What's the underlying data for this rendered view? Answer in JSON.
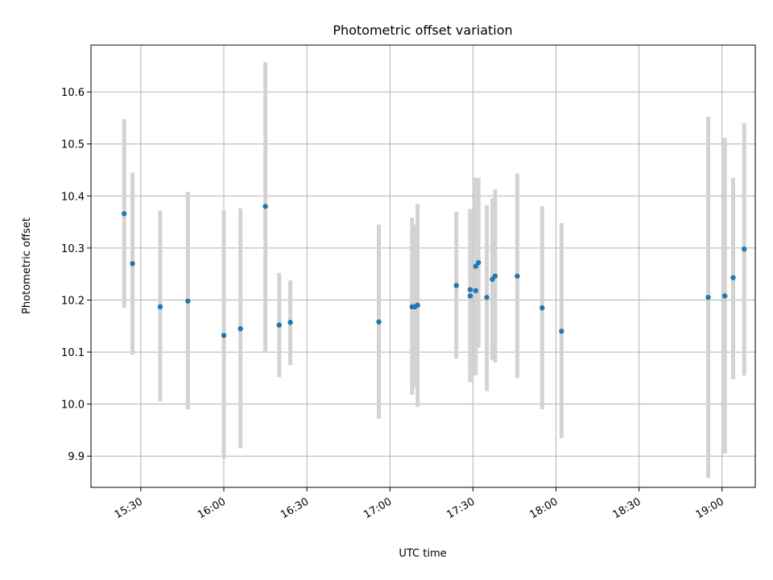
{
  "chart_data": {
    "type": "scatter",
    "title": "Photometric offset variation",
    "xlabel": "UTC time",
    "ylabel": "Photometric offset",
    "x_ticks": [
      "15:30",
      "16:00",
      "16:30",
      "17:00",
      "17:30",
      "18:00",
      "18:30",
      "19:00"
    ],
    "y_ticks": [
      "9.9",
      "10.0",
      "10.1",
      "10.2",
      "10.3",
      "10.4",
      "10.5",
      "10.6"
    ],
    "xlim": [
      "15:12",
      "19:12"
    ],
    "ylim": [
      9.84,
      10.69
    ],
    "grid": true,
    "colors": {
      "point": "#1f77b4",
      "errorbar": "#d3d3d3",
      "grid": "#b0b0b0"
    },
    "series": [
      {
        "points": [
          {
            "time": "15:24",
            "y": 10.366,
            "low": 10.185,
            "high": 10.548
          },
          {
            "time": "15:27",
            "y": 10.27,
            "low": 10.095,
            "high": 10.445
          },
          {
            "time": "15:37",
            "y": 10.187,
            "low": 10.005,
            "high": 10.372
          },
          {
            "time": "15:47",
            "y": 10.198,
            "low": 9.99,
            "high": 10.408
          },
          {
            "time": "16:00",
            "y": 10.132,
            "low": 9.895,
            "high": 10.372
          },
          {
            "time": "16:06",
            "y": 10.145,
            "low": 9.915,
            "high": 10.376
          },
          {
            "time": "16:15",
            "y": 10.38,
            "low": 10.1,
            "high": 10.657
          },
          {
            "time": "16:20",
            "y": 10.152,
            "low": 10.052,
            "high": 10.252
          },
          {
            "time": "16:24",
            "y": 10.157,
            "low": 10.075,
            "high": 10.238
          },
          {
            "time": "16:56",
            "y": 10.158,
            "low": 9.972,
            "high": 10.345
          },
          {
            "time": "17:08",
            "y": 10.187,
            "low": 10.018,
            "high": 10.358
          },
          {
            "time": "17:09",
            "y": 10.187,
            "low": 10.032,
            "high": 10.345
          },
          {
            "time": "17:10",
            "y": 10.19,
            "low": 9.995,
            "high": 10.385
          },
          {
            "time": "17:24",
            "y": 10.228,
            "low": 10.088,
            "high": 10.37
          },
          {
            "time": "17:29",
            "y": 10.22,
            "low": 10.07,
            "high": 10.375
          },
          {
            "time": "17:29",
            "y": 10.208,
            "low": 10.042,
            "high": 10.372
          },
          {
            "time": "17:31",
            "y": 10.218,
            "low": 10.055,
            "high": 10.435
          },
          {
            "time": "17:31",
            "y": 10.265,
            "low": 10.095,
            "high": 10.435
          },
          {
            "time": "17:32",
            "y": 10.272,
            "low": 10.108,
            "high": 10.435
          },
          {
            "time": "17:35",
            "y": 10.205,
            "low": 10.025,
            "high": 10.382
          },
          {
            "time": "17:37",
            "y": 10.24,
            "low": 10.085,
            "high": 10.395
          },
          {
            "time": "17:38",
            "y": 10.246,
            "low": 10.08,
            "high": 10.413
          },
          {
            "time": "17:46",
            "y": 10.246,
            "low": 10.05,
            "high": 10.443
          },
          {
            "time": "17:55",
            "y": 10.185,
            "low": 9.99,
            "high": 10.38
          },
          {
            "time": "18:02",
            "y": 10.14,
            "low": 9.935,
            "high": 10.348
          },
          {
            "time": "18:55",
            "y": 10.205,
            "low": 9.858,
            "high": 10.552
          },
          {
            "time": "19:01",
            "y": 10.208,
            "low": 9.905,
            "high": 10.512
          },
          {
            "time": "19:04",
            "y": 10.243,
            "low": 10.048,
            "high": 10.435
          },
          {
            "time": "19:08",
            "y": 10.298,
            "low": 10.055,
            "high": 10.54
          }
        ]
      }
    ]
  }
}
